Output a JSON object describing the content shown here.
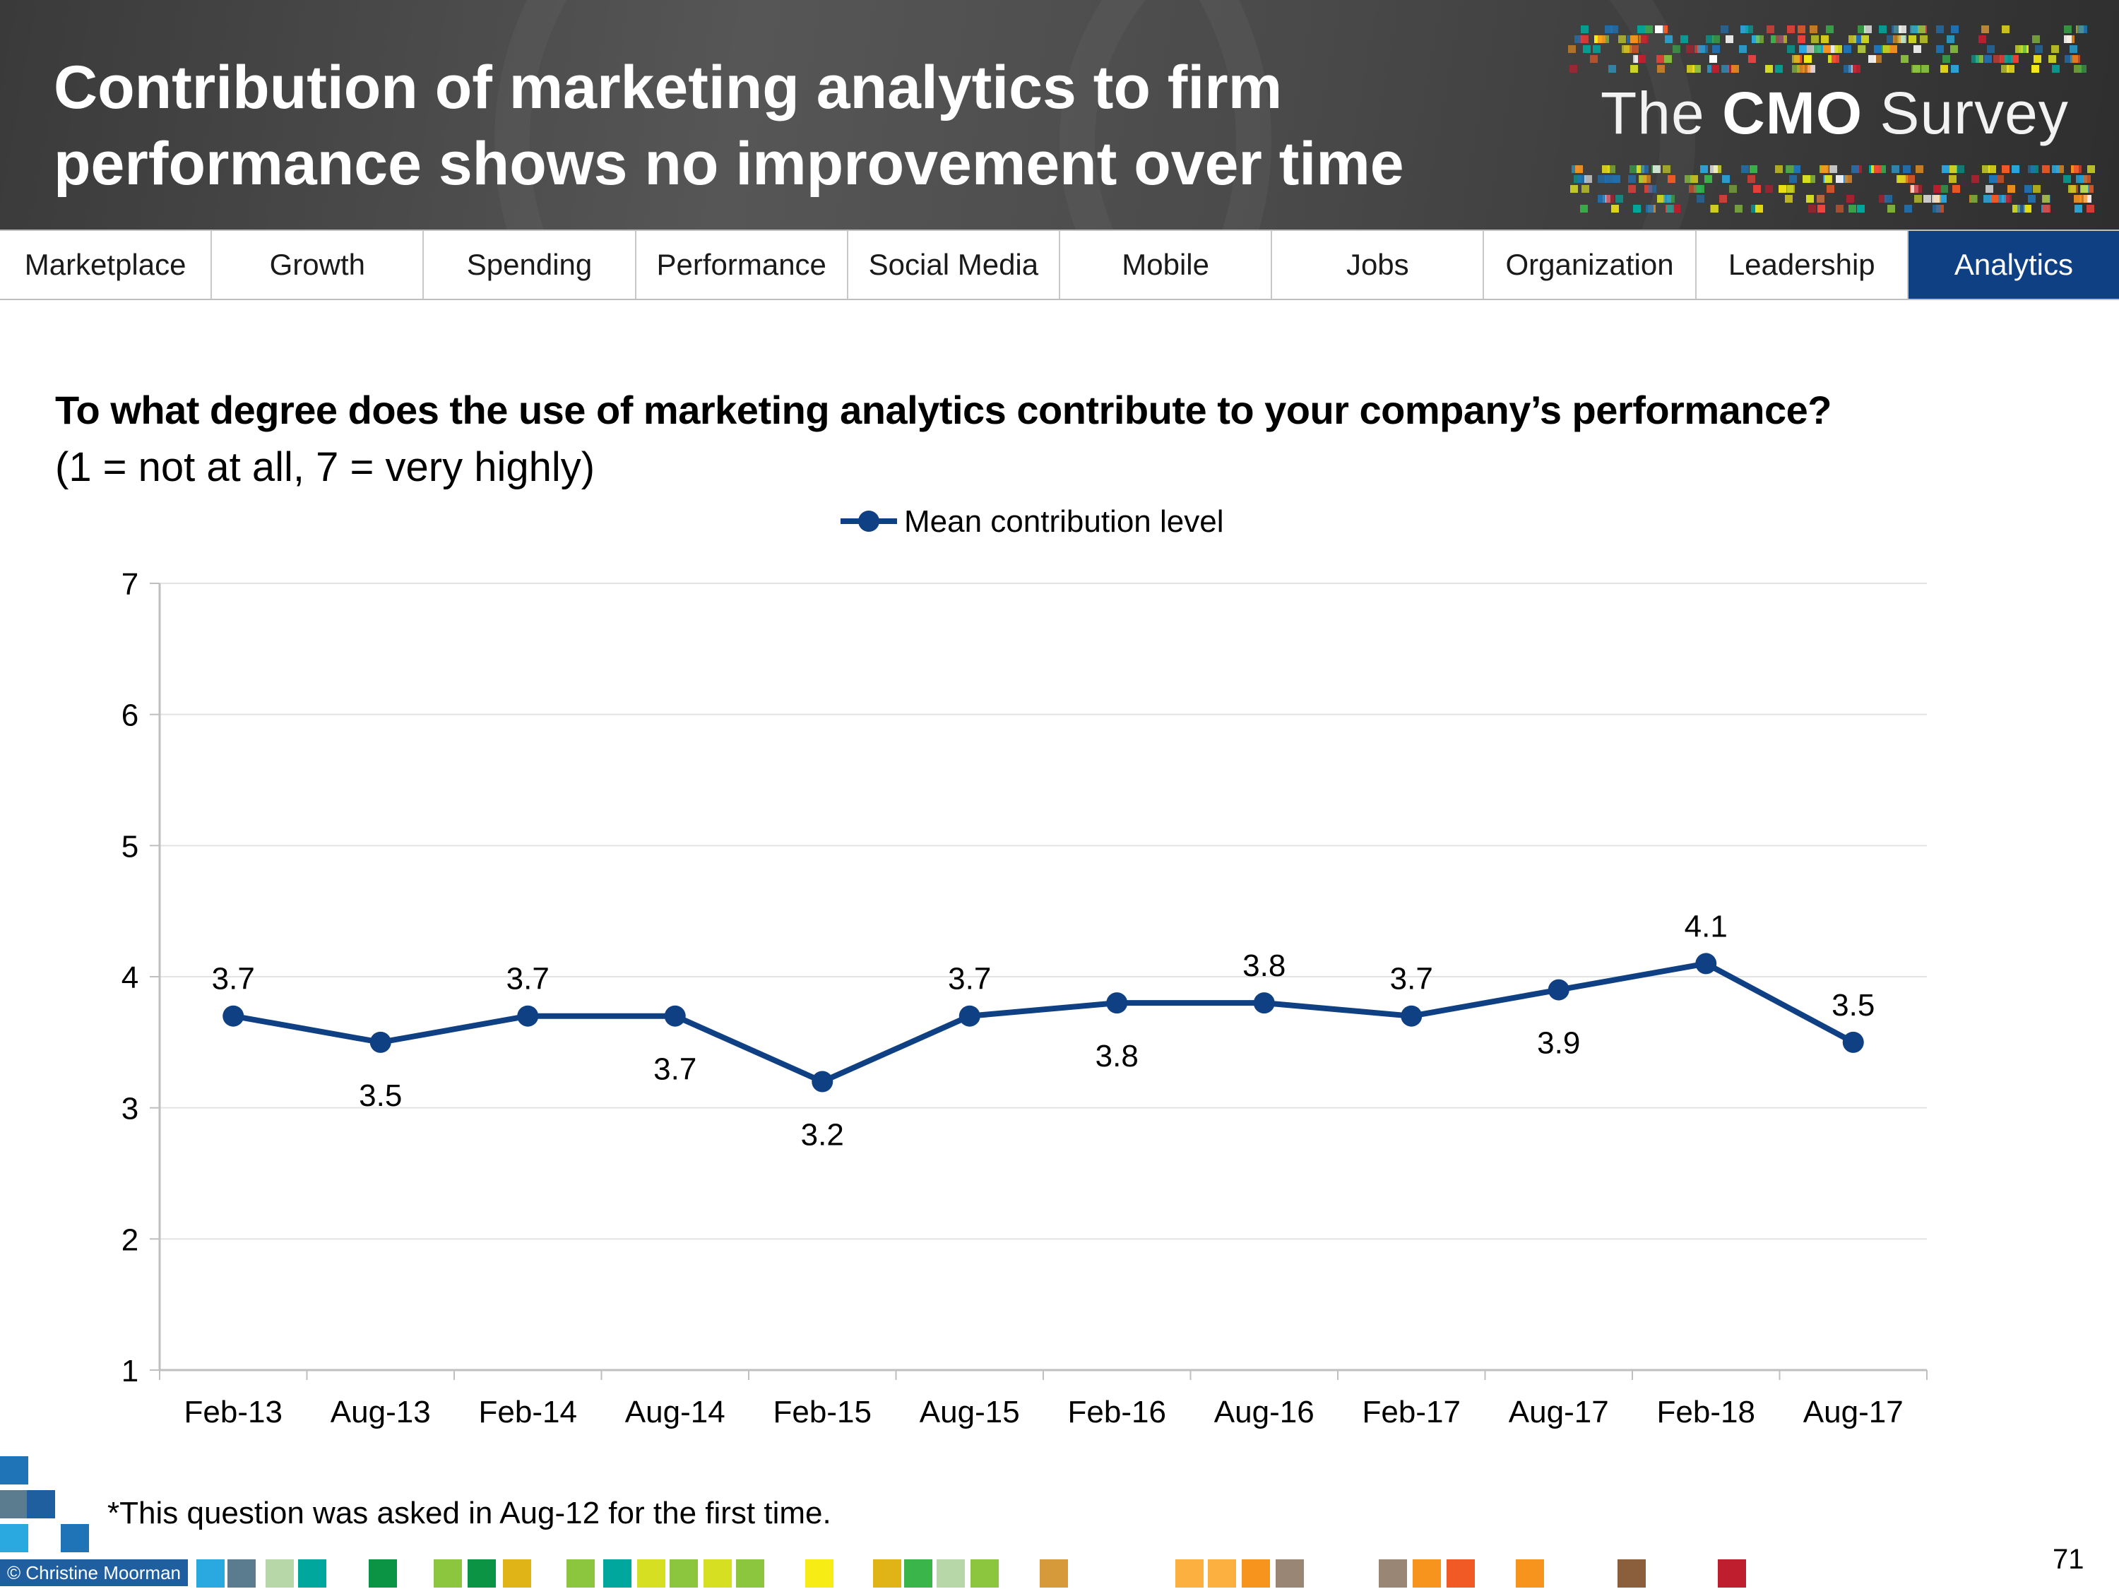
{
  "header": {
    "title": "Contribution of marketing analytics to firm performance shows no improvement over time",
    "logo": {
      "prefix": "The",
      "brand": "CMO",
      "suffix": "Survey"
    }
  },
  "nav": {
    "tabs": [
      {
        "label": "Marketplace",
        "active": false
      },
      {
        "label": "Growth",
        "active": false
      },
      {
        "label": "Spending",
        "active": false
      },
      {
        "label": "Performance",
        "active": false
      },
      {
        "label": "Social Media",
        "active": false
      },
      {
        "label": "Mobile",
        "active": false
      },
      {
        "label": "Jobs",
        "active": false
      },
      {
        "label": "Organization",
        "active": false
      },
      {
        "label": "Leadership",
        "active": false
      },
      {
        "label": "Analytics",
        "active": true
      }
    ]
  },
  "question": "To what degree does the use of marketing analytics contribute to your company’s performance?",
  "scale_note": "(1 = not at all, 7 = very highly)",
  "chart_data": {
    "type": "line",
    "categories": [
      "Feb-13",
      "Aug-13",
      "Feb-14",
      "Aug-14",
      "Feb-15",
      "Aug-15",
      "Feb-16",
      "Aug-16",
      "Feb-17",
      "Aug-17",
      "Feb-18",
      "Aug-17"
    ],
    "series": [
      {
        "name": "Mean contribution level",
        "values": [
          3.7,
          3.5,
          3.7,
          3.7,
          3.2,
          3.7,
          3.8,
          3.8,
          3.7,
          3.9,
          4.1,
          3.5
        ],
        "color": "#0f4083"
      }
    ],
    "data_labels": [
      "3.7",
      "3.5",
      "3.7",
      "3.7",
      "3.2",
      "3.7",
      "3.8",
      "3.8",
      "3.7",
      "3.9",
      "4.1",
      "3.5"
    ],
    "label_positions": [
      "above",
      "below",
      "above",
      "below",
      "below",
      "above",
      "below",
      "above",
      "above",
      "below",
      "above",
      "above"
    ],
    "ylim": [
      1,
      7
    ],
    "yticks": [
      1,
      2,
      3,
      4,
      5,
      6,
      7
    ],
    "grid": true,
    "legend": "top-center",
    "xlabel": "",
    "ylabel": ""
  },
  "footnote": "*This question was asked in Aug-12 for the first time.",
  "page_number": "71",
  "copyright": "© Christine Moorman",
  "colors": {
    "accent": "#0f4083",
    "header_bg": "#4a4a4a",
    "active_tab": "#0f4083"
  }
}
